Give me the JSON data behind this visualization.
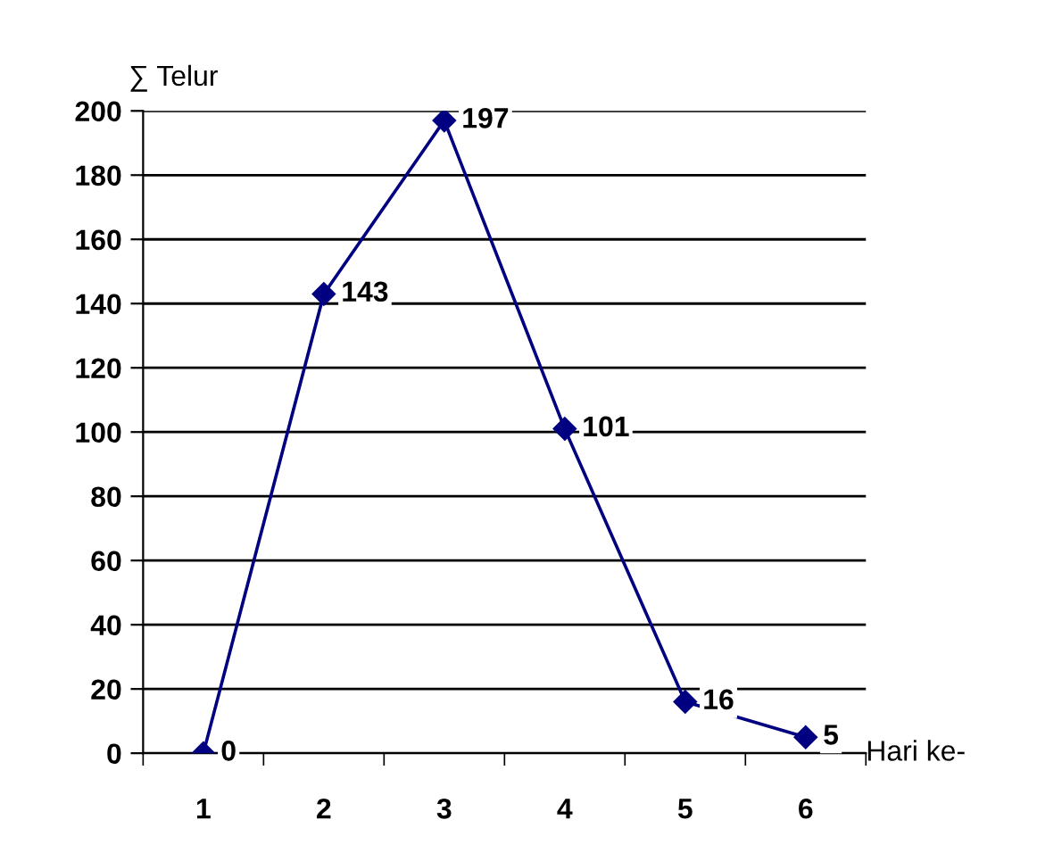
{
  "chart_data": {
    "type": "line",
    "xlabel": "Hari ke-",
    "ylabel": "∑ Telur",
    "categories": [
      "1",
      "2",
      "3",
      "4",
      "5",
      "6"
    ],
    "series": [
      {
        "color": "#000080",
        "values": [
          0,
          143,
          197,
          101,
          16,
          5
        ]
      }
    ],
    "ylim": [
      0,
      200
    ],
    "yticks": [
      0,
      20,
      40,
      60,
      80,
      100,
      120,
      140,
      160,
      180,
      200
    ],
    "grid": "y",
    "legend": false,
    "marker": "diamond",
    "line_style": "solid",
    "data_labels": true
  }
}
